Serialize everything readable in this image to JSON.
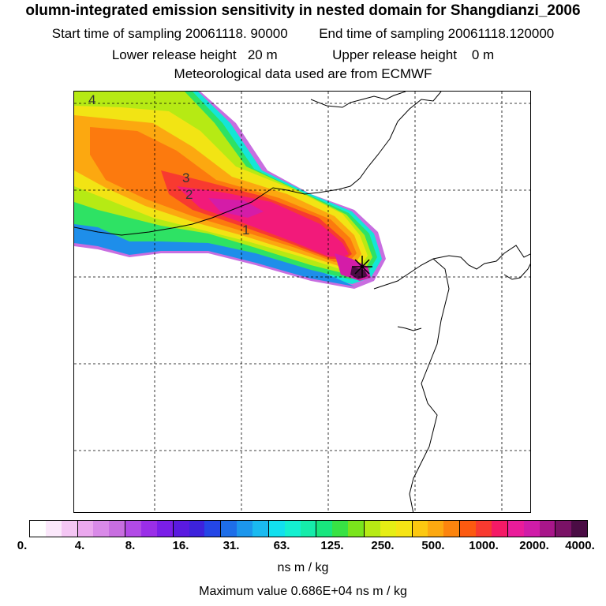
{
  "header": {
    "title": "olumn-integrated emission sensitivity in nested domain for Shangdianzi_2006",
    "start_label": "Start time of sampling",
    "start_value": "20061118. 90000",
    "end_label": "End time of sampling",
    "end_value": "20061118.120000",
    "lower_label": "Lower release height",
    "lower_value": "20 m",
    "upper_label": "Upper release height",
    "upper_value": "0 m",
    "met_line": "Meteorological data used are from ECMWF"
  },
  "map": {
    "contour_labels": [
      "4",
      "3",
      "2",
      "1"
    ],
    "release_marker": "receptor-cross-icon"
  },
  "colorbar": {
    "colors": [
      "#ffffff",
      "#fbe8fb",
      "#f4c6f4",
      "#eba8ee",
      "#d98ae8",
      "#c86ee0",
      "#b24ae6",
      "#9a2ee8",
      "#7a1ee8",
      "#5a1ae0",
      "#3d22dc",
      "#2446e6",
      "#1e6ee8",
      "#1c96ec",
      "#1abaf0",
      "#12e0ee",
      "#14f0d0",
      "#16ecaa",
      "#18e67e",
      "#38e244",
      "#7ae41c",
      "#b6ea14",
      "#e6ee14",
      "#f6e414",
      "#fcc810",
      "#fca810",
      "#fc840e",
      "#fc5a10",
      "#f83a30",
      "#f41a66",
      "#ea1c9a",
      "#d01ca8",
      "#a8168a",
      "#7a1266",
      "#4a0c44"
    ],
    "ticks": [
      "0.",
      "4.",
      "8.",
      "16.",
      "31.",
      "63.",
      "125.",
      "250.",
      "500.",
      "1000.",
      "2000.",
      "4000."
    ],
    "units": "ns m / kg"
  },
  "max_value_label": "Maximum value  0.686E+04 ns m / kg"
}
